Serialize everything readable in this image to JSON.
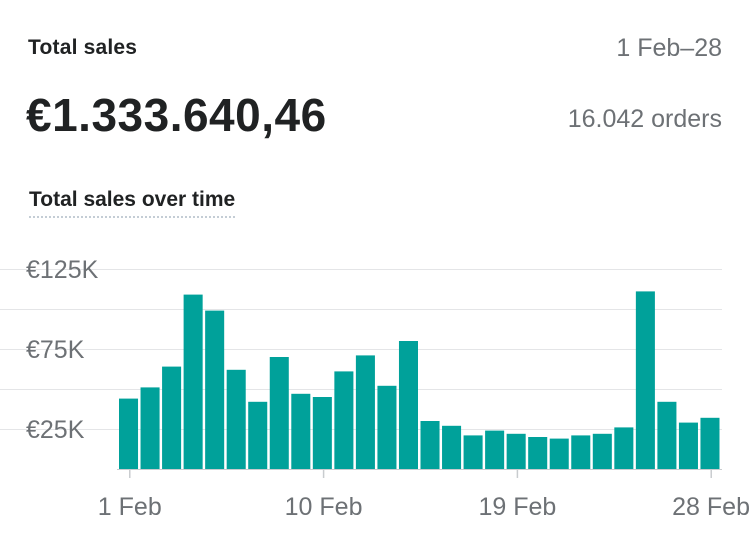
{
  "header": {
    "title": "Total sales",
    "date_range": "1 Feb–28",
    "total_value": "€1.333.640,46",
    "orders": "16.042 orders"
  },
  "chart_data": {
    "type": "bar",
    "title": "Total sales over time",
    "xlabel": "",
    "ylabel": "",
    "color": "#00a19a",
    "grid": true,
    "ylim": [
      0,
      125000
    ],
    "y_ticks": [
      {
        "value": 25000,
        "label": "€25K"
      },
      {
        "value": 75000,
        "label": "€75K"
      },
      {
        "value": 125000,
        "label": "€125K"
      }
    ],
    "x_ticks": [
      {
        "day": 1,
        "label": "1 Feb"
      },
      {
        "day": 10,
        "label": "10 Feb"
      },
      {
        "day": 19,
        "label": "19 Feb"
      },
      {
        "day": 28,
        "label": "28 Feb"
      }
    ],
    "days": [
      1,
      2,
      3,
      4,
      5,
      6,
      7,
      8,
      9,
      10,
      11,
      12,
      13,
      14,
      15,
      16,
      17,
      18,
      19,
      20,
      21,
      22,
      23,
      24,
      25,
      26,
      27,
      28
    ],
    "values": [
      44000,
      51000,
      64000,
      109000,
      99000,
      62000,
      42000,
      70000,
      47000,
      45000,
      61000,
      71000,
      52000,
      80000,
      30000,
      27000,
      21000,
      24000,
      22000,
      20000,
      19000,
      21000,
      22000,
      26000,
      111000,
      42000,
      29000,
      32000
    ]
  }
}
